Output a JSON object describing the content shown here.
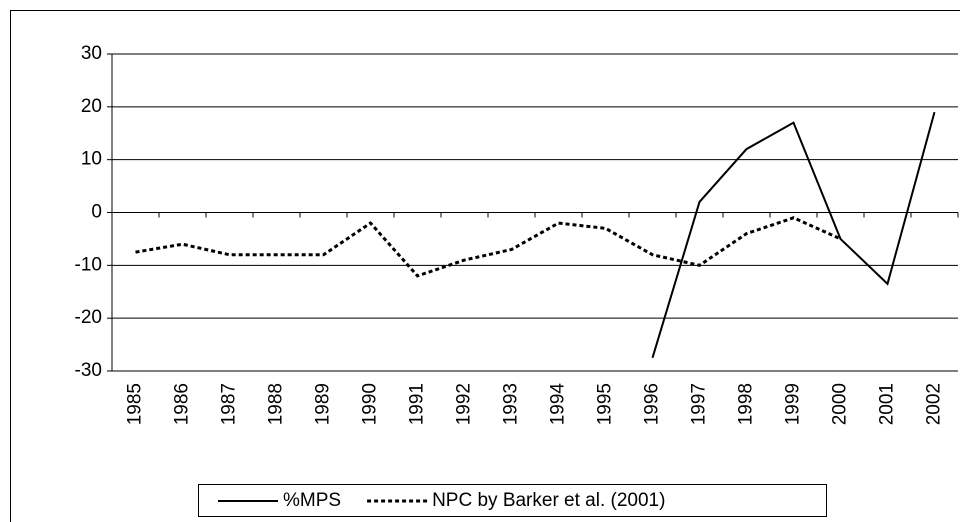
{
  "chart_data": {
    "type": "line",
    "categories": [
      "1985",
      "1986",
      "1987",
      "1988",
      "1989",
      "1990",
      "1991",
      "1992",
      "1993",
      "1994",
      "1995",
      "1996",
      "1997",
      "1998",
      "1999",
      "2000",
      "2001",
      "2002"
    ],
    "series": [
      {
        "name": "%MPS",
        "color": "#000000",
        "style": "solid",
        "values": [
          null,
          null,
          null,
          null,
          null,
          null,
          null,
          null,
          null,
          null,
          null,
          -27.5,
          2,
          12,
          17,
          -5,
          -13.5,
          19
        ]
      },
      {
        "name": "NPC by Barker et al. (2001)",
        "color": "#000000",
        "style": "dotted",
        "values": [
          -7.5,
          -6,
          -8,
          -8,
          -8,
          -2,
          -12,
          -9,
          -7,
          -2,
          -3,
          -8,
          -10,
          -4,
          -1,
          -5,
          null,
          null
        ]
      }
    ],
    "ylim": [
      -30,
      30
    ],
    "yticks": [
      -30,
      -20,
      -10,
      0,
      10,
      20,
      30
    ],
    "grid": true,
    "legend": "bottom"
  }
}
